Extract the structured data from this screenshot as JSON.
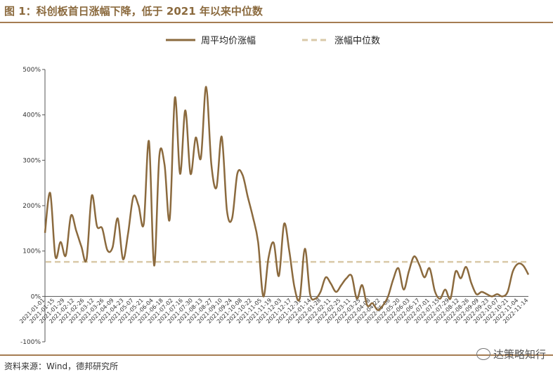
{
  "header": {
    "title": "图 1：科创板首日涨幅下降，低于 2021 年以来中位数"
  },
  "footer": {
    "source": "资料来源：Wind，德邦研究所",
    "watermark": "达策略知行"
  },
  "colors": {
    "main": "#8b6a3e",
    "median": "#d9c9a8",
    "rule": "#a57c52"
  },
  "chart_data": {
    "type": "line",
    "ylim": [
      -100,
      500
    ],
    "yticks": [
      "500%",
      "400%",
      "300%",
      "200%",
      "100%",
      "0%",
      "-100%"
    ],
    "ytick_values": [
      500,
      400,
      300,
      200,
      100,
      0,
      -100
    ],
    "x_labels": [
      "2021-01-01",
      "2021-01-15",
      "2021-01-29",
      "2021-02-12",
      "2021-02-26",
      "2021-03-12",
      "2021-03-26",
      "2021-04-09",
      "2021-04-23",
      "2021-05-07",
      "2021-05-21",
      "2021-06-04",
      "2021-06-18",
      "2021-07-02",
      "2021-07-16",
      "2021-07-30",
      "2021-08-13",
      "2021-08-27",
      "2021-09-10",
      "2021-09-24",
      "2021-10-08",
      "2021-10-22",
      "2021-11-05",
      "2021-11-19",
      "2021-12-03",
      "2021-12-17",
      "2021-12-31",
      "2022-01-14",
      "2022-01-28",
      "2022-02-11",
      "2022-02-25",
      "2022-03-11",
      "2022-03-25",
      "2022-04-08",
      "2022-04-22",
      "2022-05-06",
      "2022-05-20",
      "2022-06-03",
      "2022-06-17",
      "2022-07-01",
      "2022-07-15",
      "2022-07-29",
      "2022-08-12",
      "2022-08-26",
      "2022-09-09",
      "2022-09-23",
      "2022-10-07",
      "2022-10-21",
      "2022-11-04",
      "2022-11-14"
    ],
    "series": [
      {
        "name": "周平均价涨幅",
        "values": [
          140,
          228,
          88,
          120,
          90,
          178,
          145,
          110,
          82,
          222,
          155,
          150,
          102,
          108,
          172,
          82,
          140,
          220,
          200,
          160,
          342,
          68,
          310,
          290,
          170,
          438,
          270,
          410,
          270,
          350,
          305,
          462,
          292,
          240,
          352,
          190,
          172,
          270,
          268,
          220,
          175,
          120,
          0,
          85,
          118,
          45,
          160,
          100,
          20,
          -5,
          105,
          5,
          -5,
          10,
          42,
          28,
          10,
          25,
          40,
          45,
          -5,
          25,
          -20,
          -15,
          -30,
          -20,
          0,
          38,
          62,
          15,
          55,
          88,
          70,
          42,
          62,
          12,
          -5,
          15,
          -5,
          55,
          40,
          65,
          30,
          5,
          10,
          5,
          0,
          5,
          0,
          10,
          55,
          72,
          68,
          48
        ]
      },
      {
        "name": "涨幅中位数",
        "value": 76
      }
    ]
  }
}
